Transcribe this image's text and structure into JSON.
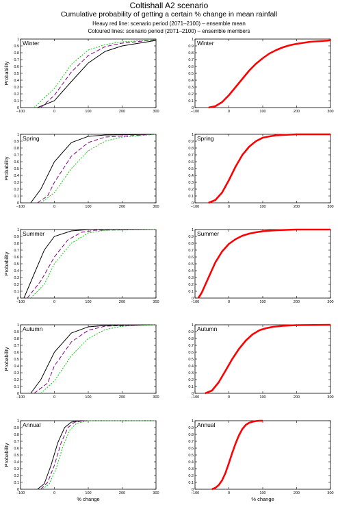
{
  "title": "Coltishall A2 scenario",
  "subtitle": "Cumulative probability of getting a certain % change in mean rainfall",
  "note_heavy": "Heavy red line: scenario period (2071–2100) – ensemble mean",
  "note_colored": "Coloured lines: scenario period (2071–2100) – ensemble members",
  "colors": {
    "ensemble_mean": "#ff0000",
    "members": [
      "#000000",
      "#7f007f",
      "#00cc00",
      "#ff0000",
      "#00cccc",
      "#000080"
    ]
  },
  "chart_data": [
    {
      "type": "line",
      "panel": "Winter",
      "column": "ensemble members",
      "xlabel": "",
      "ylabel": "Probability",
      "xlim": [
        -100,
        300
      ],
      "ylim": [
        0,
        1
      ],
      "xticks": [
        -100,
        0,
        100,
        200,
        300
      ],
      "yticks": [
        0,
        0.1,
        0.2,
        0.3,
        0.4,
        0.5,
        0.6,
        0.7,
        0.8,
        0.9,
        1
      ],
      "series": [
        {
          "x": [
            -50,
            0,
            50,
            100,
            150,
            200,
            300
          ],
          "y": [
            0,
            0.1,
            0.38,
            0.65,
            0.82,
            0.9,
            0.98
          ]
        },
        {
          "x": [
            -40,
            0,
            50,
            100,
            150,
            200,
            300
          ],
          "y": [
            0,
            0.18,
            0.52,
            0.76,
            0.89,
            0.94,
            0.99
          ]
        },
        {
          "x": [
            -60,
            0,
            50,
            100,
            150,
            200,
            300
          ],
          "y": [
            0,
            0.28,
            0.63,
            0.84,
            0.92,
            0.96,
            0.99
          ]
        }
      ]
    },
    {
      "type": "line",
      "panel": "Winter",
      "column": "ensemble mean",
      "xlabel": "",
      "ylabel": "",
      "xlim": [
        -100,
        300
      ],
      "ylim": [
        0,
        1
      ],
      "xticks": [
        -100,
        0,
        100,
        200,
        300
      ],
      "yticks": [
        0,
        0.1,
        0.2,
        0.3,
        0.4,
        0.5,
        0.6,
        0.7,
        0.8,
        0.9,
        1
      ],
      "series": [
        {
          "x": [
            -60,
            -40,
            -20,
            0,
            20,
            40,
            60,
            80,
            100,
            120,
            140,
            160,
            180,
            200,
            240,
            300
          ],
          "y": [
            0,
            0.02,
            0.08,
            0.18,
            0.3,
            0.42,
            0.54,
            0.64,
            0.72,
            0.79,
            0.84,
            0.88,
            0.91,
            0.93,
            0.96,
            0.98
          ]
        }
      ]
    },
    {
      "type": "line",
      "panel": "Spring",
      "column": "ensemble members",
      "xlabel": "",
      "ylabel": "Probability",
      "xlim": [
        -100,
        300
      ],
      "ylim": [
        0,
        1
      ],
      "xticks": [
        -100,
        0,
        100,
        200,
        300
      ],
      "yticks": [
        0,
        0.1,
        0.2,
        0.3,
        0.4,
        0.5,
        0.6,
        0.7,
        0.8,
        0.9,
        1
      ],
      "series": [
        {
          "x": [
            -70,
            -40,
            0,
            50,
            100,
            150,
            300
          ],
          "y": [
            0,
            0.2,
            0.6,
            0.88,
            0.97,
            0.99,
            1
          ]
        },
        {
          "x": [
            -50,
            -20,
            0,
            50,
            100,
            150,
            300
          ],
          "y": [
            0,
            0.1,
            0.3,
            0.68,
            0.88,
            0.96,
            1
          ]
        },
        {
          "x": [
            -40,
            0,
            50,
            100,
            150,
            200,
            300
          ],
          "y": [
            0,
            0.15,
            0.5,
            0.76,
            0.9,
            0.96,
            1
          ]
        }
      ]
    },
    {
      "type": "line",
      "panel": "Spring",
      "column": "ensemble mean",
      "xlabel": "",
      "ylabel": "",
      "xlim": [
        -100,
        300
      ],
      "ylim": [
        0,
        1
      ],
      "xticks": [
        -100,
        0,
        100,
        200,
        300
      ],
      "yticks": [
        0,
        0.1,
        0.2,
        0.3,
        0.4,
        0.5,
        0.6,
        0.7,
        0.8,
        0.9,
        1
      ],
      "series": [
        {
          "x": [
            -60,
            -40,
            -20,
            0,
            20,
            40,
            60,
            80,
            100,
            120,
            140,
            160,
            200,
            300
          ],
          "y": [
            0,
            0.04,
            0.15,
            0.33,
            0.53,
            0.7,
            0.82,
            0.9,
            0.95,
            0.97,
            0.985,
            0.99,
            1,
            1
          ]
        }
      ]
    },
    {
      "type": "line",
      "panel": "Summer",
      "column": "ensemble members",
      "xlabel": "",
      "ylabel": "Probability",
      "xlim": [
        -100,
        300
      ],
      "ylim": [
        0,
        1
      ],
      "xticks": [
        -100,
        0,
        100,
        200,
        300
      ],
      "yticks": [
        0,
        0.1,
        0.2,
        0.3,
        0.4,
        0.5,
        0.6,
        0.7,
        0.8,
        0.9,
        1
      ],
      "series": [
        {
          "x": [
            -90,
            -60,
            -30,
            0,
            50,
            100,
            300
          ],
          "y": [
            0,
            0.35,
            0.7,
            0.9,
            0.98,
            1,
            1
          ]
        },
        {
          "x": [
            -80,
            -40,
            0,
            40,
            80,
            120,
            300
          ],
          "y": [
            0,
            0.25,
            0.6,
            0.85,
            0.96,
            0.99,
            1
          ]
        },
        {
          "x": [
            -70,
            -30,
            0,
            50,
            100,
            150,
            300
          ],
          "y": [
            0,
            0.2,
            0.5,
            0.8,
            0.95,
            0.99,
            1
          ]
        }
      ]
    },
    {
      "type": "line",
      "panel": "Summer",
      "column": "ensemble mean",
      "xlabel": "",
      "ylabel": "",
      "xlim": [
        -100,
        300
      ],
      "ylim": [
        0,
        1
      ],
      "xticks": [
        -100,
        0,
        100,
        200,
        300
      ],
      "yticks": [
        0,
        0.1,
        0.2,
        0.3,
        0.4,
        0.5,
        0.6,
        0.7,
        0.8,
        0.9,
        1
      ],
      "series": [
        {
          "x": [
            -90,
            -80,
            -60,
            -40,
            -20,
            0,
            20,
            40,
            60,
            80,
            100,
            140,
            200,
            300
          ],
          "y": [
            0,
            0.08,
            0.3,
            0.52,
            0.68,
            0.79,
            0.86,
            0.91,
            0.94,
            0.96,
            0.975,
            0.99,
            1,
            1
          ]
        }
      ]
    },
    {
      "type": "line",
      "panel": "Autumn",
      "column": "ensemble members",
      "xlabel": "",
      "ylabel": "Probability",
      "xlim": [
        -100,
        300
      ],
      "ylim": [
        0,
        1
      ],
      "xticks": [
        -100,
        0,
        100,
        200,
        300
      ],
      "yticks": [
        0,
        0.1,
        0.2,
        0.3,
        0.4,
        0.5,
        0.6,
        0.7,
        0.8,
        0.9,
        1
      ],
      "series": [
        {
          "x": [
            -70,
            -40,
            0,
            50,
            100,
            150,
            300
          ],
          "y": [
            0,
            0.2,
            0.6,
            0.88,
            0.97,
            0.99,
            1
          ]
        },
        {
          "x": [
            -60,
            -20,
            0,
            50,
            100,
            150,
            300
          ],
          "y": [
            0,
            0.15,
            0.4,
            0.75,
            0.92,
            0.98,
            1
          ]
        },
        {
          "x": [
            -40,
            0,
            50,
            100,
            150,
            200,
            300
          ],
          "y": [
            0,
            0.18,
            0.55,
            0.8,
            0.93,
            0.98,
            1
          ]
        }
      ]
    },
    {
      "type": "line",
      "panel": "Autumn",
      "column": "ensemble mean",
      "xlabel": "",
      "ylabel": "",
      "xlim": [
        -100,
        300
      ],
      "ylim": [
        0,
        1
      ],
      "xticks": [
        -100,
        0,
        100,
        200,
        300
      ],
      "yticks": [
        0,
        0.1,
        0.2,
        0.3,
        0.4,
        0.5,
        0.6,
        0.7,
        0.8,
        0.9,
        1
      ],
      "series": [
        {
          "x": [
            -70,
            -50,
            -30,
            -10,
            10,
            30,
            50,
            70,
            90,
            110,
            130,
            160,
            200,
            300
          ],
          "y": [
            0,
            0.04,
            0.16,
            0.33,
            0.5,
            0.65,
            0.77,
            0.86,
            0.92,
            0.95,
            0.97,
            0.985,
            0.995,
            1
          ]
        }
      ]
    },
    {
      "type": "line",
      "panel": "Annual",
      "column": "ensemble members",
      "xlabel": "% change",
      "ylabel": "Probability",
      "xlim": [
        -100,
        300
      ],
      "ylim": [
        0,
        1
      ],
      "xticks": [
        -100,
        0,
        100,
        200,
        300
      ],
      "yticks": [
        0,
        0.1,
        0.2,
        0.3,
        0.4,
        0.5,
        0.6,
        0.7,
        0.8,
        0.9,
        1
      ],
      "series": [
        {
          "x": [
            -50,
            -30,
            -10,
            10,
            30,
            50,
            80,
            300
          ],
          "y": [
            0,
            0.08,
            0.35,
            0.68,
            0.9,
            0.98,
            1,
            1
          ]
        },
        {
          "x": [
            -40,
            -20,
            0,
            20,
            40,
            60,
            90,
            300
          ],
          "y": [
            0,
            0.1,
            0.35,
            0.68,
            0.9,
            0.98,
            1,
            1
          ]
        },
        {
          "x": [
            -35,
            -15,
            5,
            25,
            45,
            65,
            100,
            300
          ],
          "y": [
            0,
            0.08,
            0.3,
            0.62,
            0.86,
            0.96,
            1,
            1
          ]
        }
      ]
    },
    {
      "type": "line",
      "panel": "Annual",
      "column": "ensemble mean",
      "xlabel": "% change",
      "ylabel": "",
      "xlim": [
        -100,
        300
      ],
      "ylim": [
        0,
        1
      ],
      "xticks": [
        -100,
        0,
        100,
        200,
        300
      ],
      "yticks": [
        0,
        0.1,
        0.2,
        0.3,
        0.4,
        0.5,
        0.6,
        0.7,
        0.8,
        0.9,
        1
      ],
      "series": [
        {
          "x": [
            -50,
            -40,
            -30,
            -20,
            -10,
            0,
            10,
            20,
            30,
            40,
            50,
            60,
            70,
            80,
            90,
            100
          ],
          "y": [
            0,
            0.02,
            0.06,
            0.13,
            0.24,
            0.38,
            0.53,
            0.67,
            0.79,
            0.88,
            0.94,
            0.97,
            0.985,
            0.995,
            1,
            1
          ]
        }
      ]
    }
  ]
}
